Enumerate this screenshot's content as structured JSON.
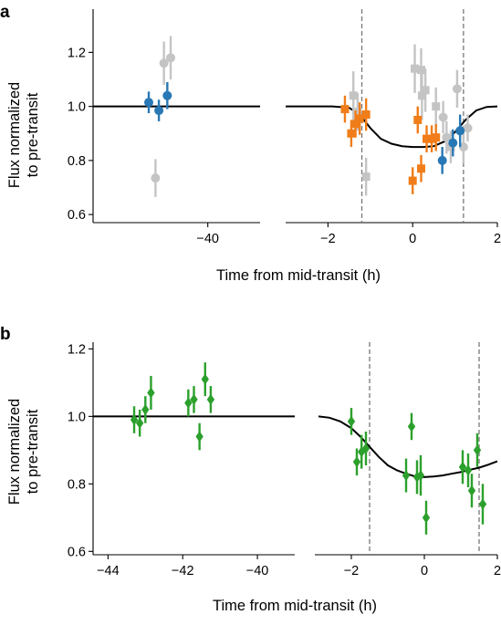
{
  "colors": {
    "blue": "#2878b5",
    "grey": "#c4c4c4",
    "orange": "#f07d19",
    "green": "#2ca02c",
    "model": "#000000",
    "dashed": "#777777"
  },
  "chart_data": [
    {
      "panel": "a",
      "type": "scatter",
      "ylabel_line1": "Flux normalized",
      "ylabel_line2": "to pre-transit",
      "xlabel": "Time from mid-transit (h)",
      "ylim": [
        0.57,
        1.36
      ],
      "yticks": [
        0.6,
        0.8,
        1.0,
        1.2
      ],
      "ytick_labels": [
        "0.6",
        "0.8",
        "1.0",
        "1.2"
      ],
      "left": {
        "xlim": [
          -46.8,
          -36.9
        ],
        "xticks": [
          -40
        ],
        "xtick_labels": [
          "−40"
        ],
        "model": [
          [
            -46.8,
            1.0
          ],
          [
            -36.9,
            1.0
          ]
        ]
      },
      "right": {
        "xlim": [
          -3.0,
          2.0
        ],
        "xticks": [
          -2,
          0,
          2
        ],
        "xtick_labels": [
          "−2",
          "0",
          "2"
        ],
        "vlines": [
          -1.2,
          1.2
        ],
        "model": [
          [
            -3.0,
            1.0
          ],
          [
            -1.9,
            1.0
          ],
          [
            -1.5,
            0.995
          ],
          [
            -1.25,
            0.97
          ],
          [
            -1.0,
            0.92
          ],
          [
            -0.75,
            0.88
          ],
          [
            -0.5,
            0.862
          ],
          [
            -0.25,
            0.853
          ],
          [
            0.0,
            0.85
          ],
          [
            0.25,
            0.85
          ],
          [
            0.5,
            0.853
          ],
          [
            0.75,
            0.87
          ],
          [
            1.0,
            0.905
          ],
          [
            1.25,
            0.95
          ],
          [
            1.5,
            0.985
          ],
          [
            1.75,
            0.998
          ],
          [
            2.0,
            1.0
          ]
        ]
      },
      "series": [
        {
          "marker": "circle",
          "color_key": "grey",
          "axis": "left",
          "points": [
            {
              "x": -43.1,
              "y": 0.735,
              "err": 0.07
            },
            {
              "x": -42.6,
              "y": 1.16,
              "err": 0.08
            },
            {
              "x": -42.2,
              "y": 1.18,
              "err": 0.08
            }
          ]
        },
        {
          "marker": "circle",
          "color_key": "blue",
          "axis": "left",
          "points": [
            {
              "x": -43.5,
              "y": 1.015,
              "err": 0.04
            },
            {
              "x": -42.9,
              "y": 0.985,
              "err": 0.04
            },
            {
              "x": -42.4,
              "y": 1.04,
              "err": 0.05
            }
          ]
        },
        {
          "marker": "circle",
          "color_key": "grey",
          "axis": "right",
          "points": [
            {
              "x": 0.8,
              "y": 0.885,
              "err": 0.06
            },
            {
              "x": 1.2,
              "y": 0.85,
              "err": 0.06
            },
            {
              "x": 1.3,
              "y": 0.92,
              "err": 0.05
            },
            {
              "x": 1.05,
              "y": 1.065,
              "err": 0.07
            },
            {
              "x": 0.72,
              "y": 0.96,
              "err": 0.06
            }
          ]
        },
        {
          "marker": "square",
          "color_key": "grey",
          "axis": "right",
          "points": [
            {
              "x": -1.4,
              "y": 1.04,
              "err": 0.09
            },
            {
              "x": -1.3,
              "y": 0.98,
              "err": 0.07
            },
            {
              "x": -1.1,
              "y": 0.74,
              "err": 0.07
            },
            {
              "x": 0.05,
              "y": 1.14,
              "err": 0.09
            },
            {
              "x": 0.2,
              "y": 1.135,
              "err": 0.08
            },
            {
              "x": 0.22,
              "y": 1.04,
              "err": 0.09
            },
            {
              "x": 0.3,
              "y": 1.06,
              "err": 0.08
            },
            {
              "x": 0.55,
              "y": 1.0,
              "err": 0.07
            },
            {
              "x": 0.9,
              "y": 0.85,
              "err": 0.06
            }
          ]
        },
        {
          "marker": "square",
          "color_key": "orange",
          "axis": "right",
          "points": [
            {
              "x": -1.6,
              "y": 0.99,
              "err": 0.05
            },
            {
              "x": -1.45,
              "y": 0.9,
              "err": 0.05
            },
            {
              "x": -1.35,
              "y": 0.935,
              "err": 0.05
            },
            {
              "x": -1.25,
              "y": 0.955,
              "err": 0.06
            },
            {
              "x": -1.1,
              "y": 0.97,
              "err": 0.06
            },
            {
              "x": 0.0,
              "y": 0.725,
              "err": 0.05
            },
            {
              "x": 0.12,
              "y": 0.95,
              "err": 0.05
            },
            {
              "x": 0.2,
              "y": 0.77,
              "err": 0.05
            },
            {
              "x": 0.33,
              "y": 0.88,
              "err": 0.05
            },
            {
              "x": 0.45,
              "y": 0.88,
              "err": 0.05
            },
            {
              "x": 0.55,
              "y": 0.885,
              "err": 0.05
            }
          ]
        },
        {
          "marker": "circle",
          "color_key": "blue",
          "axis": "right",
          "points": [
            {
              "x": 0.7,
              "y": 0.8,
              "err": 0.05
            },
            {
              "x": 0.95,
              "y": 0.865,
              "err": 0.05
            },
            {
              "x": 1.12,
              "y": 0.91,
              "err": 0.06
            }
          ]
        }
      ]
    },
    {
      "panel": "b",
      "type": "scatter",
      "ylabel_line1": "Flux normalized",
      "ylabel_line2": "to pre-transit",
      "xlabel": "Time from mid-transit (h)",
      "ylim": [
        0.59,
        1.22
      ],
      "yticks": [
        0.6,
        0.8,
        1.0,
        1.2
      ],
      "ytick_labels": [
        "0.6",
        "0.8",
        "1.0",
        "1.2"
      ],
      "left": {
        "xlim": [
          -44.4,
          -39.0
        ],
        "xticks": [
          -44,
          -42,
          -40
        ],
        "xtick_labels": [
          "−44",
          "−42",
          "−40"
        ],
        "model": [
          [
            -44.4,
            1.0
          ],
          [
            -39.0,
            1.0
          ]
        ]
      },
      "right": {
        "xlim": [
          -3.0,
          2.0
        ],
        "xticks": [
          -2,
          0,
          2
        ],
        "xtick_labels": [
          "−2",
          "0",
          "2"
        ],
        "vlines": [
          -1.5,
          1.5
        ],
        "model": [
          [
            -2.9,
            1.0
          ],
          [
            -2.6,
            0.996
          ],
          [
            -2.3,
            0.985
          ],
          [
            -2.0,
            0.965
          ],
          [
            -1.75,
            0.94
          ],
          [
            -1.5,
            0.91
          ],
          [
            -1.25,
            0.88
          ],
          [
            -1.0,
            0.855
          ],
          [
            -0.75,
            0.84
          ],
          [
            -0.5,
            0.83
          ],
          [
            -0.25,
            0.822
          ],
          [
            0.0,
            0.82
          ],
          [
            0.25,
            0.822
          ],
          [
            0.5,
            0.825
          ],
          [
            0.75,
            0.83
          ],
          [
            1.0,
            0.835
          ],
          [
            1.25,
            0.842
          ],
          [
            1.5,
            0.848
          ],
          [
            1.75,
            0.857
          ],
          [
            2.0,
            0.867
          ]
        ]
      },
      "series": [
        {
          "marker": "diamond",
          "color_key": "green",
          "axis": "left",
          "points": [
            {
              "x": -43.3,
              "y": 0.99,
              "err": 0.04
            },
            {
              "x": -43.15,
              "y": 0.98,
              "err": 0.04
            },
            {
              "x": -43.0,
              "y": 1.02,
              "err": 0.04
            },
            {
              "x": -42.85,
              "y": 1.07,
              "err": 0.05
            },
            {
              "x": -41.85,
              "y": 1.04,
              "err": 0.04
            },
            {
              "x": -41.7,
              "y": 1.05,
              "err": 0.04
            },
            {
              "x": -41.55,
              "y": 0.94,
              "err": 0.04
            },
            {
              "x": -41.4,
              "y": 1.11,
              "err": 0.05
            },
            {
              "x": -41.25,
              "y": 1.05,
              "err": 0.04
            }
          ]
        },
        {
          "marker": "diamond",
          "color_key": "green",
          "axis": "right",
          "points": [
            {
              "x": -2.0,
              "y": 0.985,
              "err": 0.04
            },
            {
              "x": -1.85,
              "y": 0.865,
              "err": 0.04
            },
            {
              "x": -1.72,
              "y": 0.895,
              "err": 0.05
            },
            {
              "x": -1.6,
              "y": 0.905,
              "err": 0.05
            },
            {
              "x": -0.5,
              "y": 0.825,
              "err": 0.05
            },
            {
              "x": -0.35,
              "y": 0.97,
              "err": 0.04
            },
            {
              "x": -0.2,
              "y": 0.82,
              "err": 0.05
            },
            {
              "x": -0.1,
              "y": 0.825,
              "err": 0.06
            },
            {
              "x": 0.05,
              "y": 0.7,
              "err": 0.05
            },
            {
              "x": 1.05,
              "y": 0.85,
              "err": 0.05
            },
            {
              "x": 1.2,
              "y": 0.84,
              "err": 0.05
            },
            {
              "x": 1.3,
              "y": 0.78,
              "err": 0.05
            },
            {
              "x": 1.45,
              "y": 0.9,
              "err": 0.05
            },
            {
              "x": 1.6,
              "y": 0.74,
              "err": 0.06
            }
          ]
        }
      ]
    }
  ]
}
